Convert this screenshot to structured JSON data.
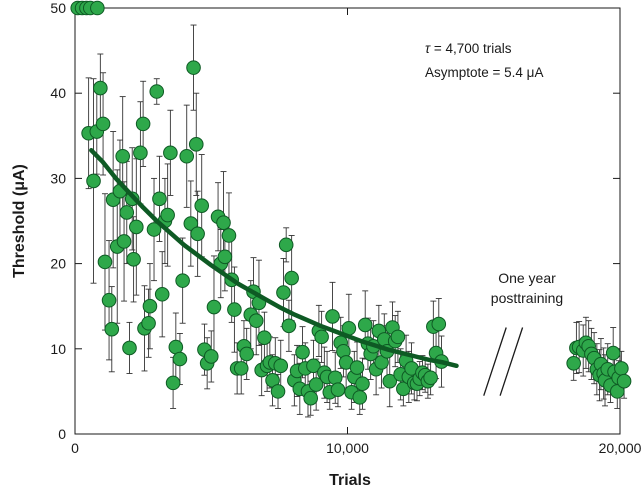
{
  "chart_data": {
    "type": "scatter",
    "xlabel": "Trials",
    "ylabel": "Threshold (μA)",
    "xlim": [
      0,
      20000
    ],
    "ylim": [
      0,
      50
    ],
    "x_ticks": [
      0,
      10000,
      20000
    ],
    "x_tick_labels": [
      "0",
      "10,000",
      "20,000"
    ],
    "y_ticks": [
      0,
      10,
      20,
      30,
      40,
      50
    ],
    "y_tick_labels": [
      "0",
      "10",
      "20",
      "30",
      "40",
      "50"
    ],
    "grid": false,
    "legend": "none",
    "annotations": {
      "tau_symbol": "τ",
      "tau_text": " = 4,700 trials",
      "asymptote": "Asymptote = 5.4 μA",
      "post_line1": "One year",
      "post_line2": "posttraining"
    },
    "axis_break_x": [
      15000,
      16500
    ],
    "colors": {
      "marker_fill": "#2ea84a",
      "marker_edge": "#0e5a24",
      "fit_line": "#0e5a24",
      "error_bar": "#333333"
    },
    "fit_curve": {
      "x_start": 600,
      "x_end": 14000,
      "values": [
        [
          600,
          33.3
        ],
        [
          1000,
          32.0
        ],
        [
          1500,
          30.0
        ],
        [
          2000,
          28.3
        ],
        [
          2500,
          26.6
        ],
        [
          3000,
          25.0
        ],
        [
          3500,
          23.6
        ],
        [
          4000,
          22.2
        ],
        [
          4500,
          21.0
        ],
        [
          5000,
          19.8
        ],
        [
          5500,
          18.7
        ],
        [
          6000,
          17.6
        ],
        [
          6500,
          16.7
        ],
        [
          7000,
          15.8
        ],
        [
          7500,
          14.9
        ],
        [
          8000,
          14.1
        ],
        [
          8500,
          13.4
        ],
        [
          9000,
          12.7
        ],
        [
          9500,
          12.1
        ],
        [
          10000,
          11.5
        ],
        [
          10500,
          10.9
        ],
        [
          11000,
          10.4
        ],
        [
          11500,
          9.9
        ],
        [
          12000,
          9.5
        ],
        [
          12500,
          9.1
        ],
        [
          13000,
          8.7
        ],
        [
          13500,
          8.4
        ],
        [
          14000,
          8.0
        ]
      ]
    },
    "series": [
      {
        "points": [
          [
            100,
            50,
            0
          ],
          [
            260,
            50,
            0
          ],
          [
            420,
            50,
            0
          ],
          [
            560,
            50,
            0
          ],
          [
            820,
            50,
            0
          ],
          [
            500,
            35.3,
            6.5
          ],
          [
            680,
            29.7,
            12
          ],
          [
            800,
            35.5,
            5
          ],
          [
            930,
            40.6,
            4
          ],
          [
            1030,
            36.4,
            6
          ],
          [
            1100,
            20.2,
            8
          ],
          [
            1250,
            15.7,
            7
          ],
          [
            1350,
            12.3,
            5
          ],
          [
            1400,
            27.5,
            8
          ],
          [
            1550,
            22.0,
            9
          ],
          [
            1650,
            28.5,
            6
          ],
          [
            1750,
            32.6,
            7
          ],
          [
            1800,
            22.6,
            7
          ],
          [
            1900,
            26.0,
            6
          ],
          [
            2000,
            10.1,
            3
          ],
          [
            2100,
            27.6,
            6
          ],
          [
            2150,
            20.5,
            5
          ],
          [
            2250,
            24.3,
            8
          ],
          [
            2400,
            33.0,
            6
          ],
          [
            2500,
            36.4,
            5
          ],
          [
            2550,
            12.4,
            5
          ],
          [
            2700,
            13.0,
            4
          ],
          [
            2750,
            15.0,
            5
          ],
          [
            2900,
            24.0,
            6
          ],
          [
            3000,
            40.2,
            1.5
          ],
          [
            3100,
            27.6,
            5
          ],
          [
            3200,
            16.4,
            5
          ],
          [
            3300,
            25.0,
            5
          ],
          [
            3400,
            25.7,
            6
          ],
          [
            3500,
            33.0,
            5
          ],
          [
            3600,
            6.0,
            3
          ],
          [
            3700,
            10.2,
            4
          ],
          [
            3850,
            8.8,
            3
          ],
          [
            3950,
            18.0,
            5
          ],
          [
            4100,
            32.6,
            6
          ],
          [
            4250,
            24.7,
            5
          ],
          [
            4350,
            43.0,
            5
          ],
          [
            4450,
            34.0,
            6
          ],
          [
            4500,
            23.5,
            5
          ],
          [
            4650,
            26.8,
            6
          ],
          [
            4750,
            9.9,
            3
          ],
          [
            4850,
            8.3,
            3
          ],
          [
            5000,
            9.1,
            3
          ],
          [
            5100,
            14.9,
            6
          ],
          [
            5250,
            25.5,
            4
          ],
          [
            5350,
            20.0,
            4
          ],
          [
            5450,
            24.8,
            6
          ],
          [
            5500,
            20.8,
            4
          ],
          [
            5650,
            23.3,
            5
          ],
          [
            5750,
            18.1,
            5
          ],
          [
            5850,
            14.6,
            5
          ],
          [
            5950,
            7.7,
            3
          ],
          [
            6100,
            7.7,
            3
          ],
          [
            6200,
            10.3,
            3
          ],
          [
            6300,
            9.4,
            3
          ],
          [
            6450,
            14.0,
            4
          ],
          [
            6550,
            16.7,
            4
          ],
          [
            6650,
            13.3,
            4
          ],
          [
            6750,
            15.4,
            5
          ],
          [
            6850,
            7.5,
            3
          ],
          [
            6950,
            11.3,
            3
          ],
          [
            7050,
            8.0,
            3
          ],
          [
            7150,
            8.4,
            3
          ],
          [
            7250,
            6.3,
            3
          ],
          [
            7350,
            8.3,
            3
          ],
          [
            7450,
            5.0,
            2
          ],
          [
            7550,
            8.0,
            3
          ],
          [
            7650,
            16.6,
            4
          ],
          [
            7750,
            22.2,
            2
          ],
          [
            7850,
            12.7,
            3
          ],
          [
            7950,
            18.3,
            5
          ],
          [
            8050,
            6.3,
            3
          ],
          [
            8150,
            7.4,
            3
          ],
          [
            8250,
            5.3,
            3
          ],
          [
            8350,
            9.6,
            3
          ],
          [
            8450,
            7.7,
            3
          ],
          [
            8550,
            5.0,
            3
          ],
          [
            8650,
            4.2,
            2
          ],
          [
            8750,
            8.0,
            3
          ],
          [
            8850,
            5.8,
            3
          ],
          [
            8950,
            12.1,
            3
          ],
          [
            9050,
            11.4,
            3
          ],
          [
            9150,
            7.2,
            3
          ],
          [
            9250,
            6.7,
            3
          ],
          [
            9350,
            4.9,
            2
          ],
          [
            9450,
            13.8,
            4
          ],
          [
            9550,
            6.6,
            3
          ],
          [
            9650,
            5.2,
            2
          ],
          [
            9750,
            10.7,
            3
          ],
          [
            9850,
            9.7,
            3
          ],
          [
            9950,
            8.4,
            3
          ],
          [
            10050,
            12.4,
            4
          ],
          [
            10150,
            4.9,
            2
          ],
          [
            10250,
            6.7,
            3
          ],
          [
            10350,
            7.8,
            3
          ],
          [
            10450,
            4.3,
            2
          ],
          [
            10550,
            5.9,
            3
          ],
          [
            10650,
            12.8,
            4
          ],
          [
            10750,
            10.6,
            3
          ],
          [
            10850,
            9.4,
            3
          ],
          [
            10950,
            10.3,
            3
          ],
          [
            11050,
            7.6,
            3
          ],
          [
            11150,
            12.1,
            3
          ],
          [
            11250,
            8.4,
            3
          ],
          [
            11350,
            11.1,
            3
          ],
          [
            11450,
            9.7,
            3
          ],
          [
            11550,
            6.2,
            3
          ],
          [
            11650,
            12.5,
            3
          ],
          [
            11750,
            10.9,
            3
          ],
          [
            11850,
            11.4,
            3
          ],
          [
            11950,
            7.0,
            3
          ],
          [
            12050,
            5.3,
            2
          ],
          [
            12150,
            8.6,
            3
          ],
          [
            12250,
            6.7,
            3
          ],
          [
            12350,
            7.7,
            3
          ],
          [
            12450,
            6.0,
            2
          ],
          [
            12550,
            5.9,
            2
          ],
          [
            12650,
            6.5,
            2
          ],
          [
            12750,
            7.2,
            2
          ],
          [
            12850,
            6.9,
            2
          ],
          [
            12950,
            6.2,
            2
          ],
          [
            13050,
            6.6,
            2
          ],
          [
            13150,
            12.6,
            3
          ],
          [
            13250,
            9.5,
            3
          ],
          [
            13350,
            12.9,
            3
          ],
          [
            13450,
            8.5,
            3
          ],
          [
            18300,
            8.3,
            2
          ],
          [
            18400,
            10.1,
            3
          ],
          [
            18500,
            10.2,
            3
          ],
          [
            18650,
            9.8,
            3
          ],
          [
            18750,
            10.7,
            3
          ],
          [
            18850,
            10.3,
            3
          ],
          [
            18950,
            9.4,
            3
          ],
          [
            19050,
            8.9,
            3
          ],
          [
            19150,
            7.6,
            3
          ],
          [
            19250,
            6.9,
            3
          ],
          [
            19300,
            8.2,
            3
          ],
          [
            19400,
            7.1,
            3
          ],
          [
            19450,
            6.3,
            3
          ],
          [
            19550,
            7.6,
            3
          ],
          [
            19650,
            5.7,
            2
          ],
          [
            19750,
            9.5,
            3
          ],
          [
            19800,
            7.3,
            2
          ],
          [
            19900,
            5.0,
            2
          ],
          [
            19950,
            6.6,
            2
          ],
          [
            20050,
            7.7,
            2
          ],
          [
            20150,
            6.2,
            2
          ]
        ]
      }
    ]
  }
}
